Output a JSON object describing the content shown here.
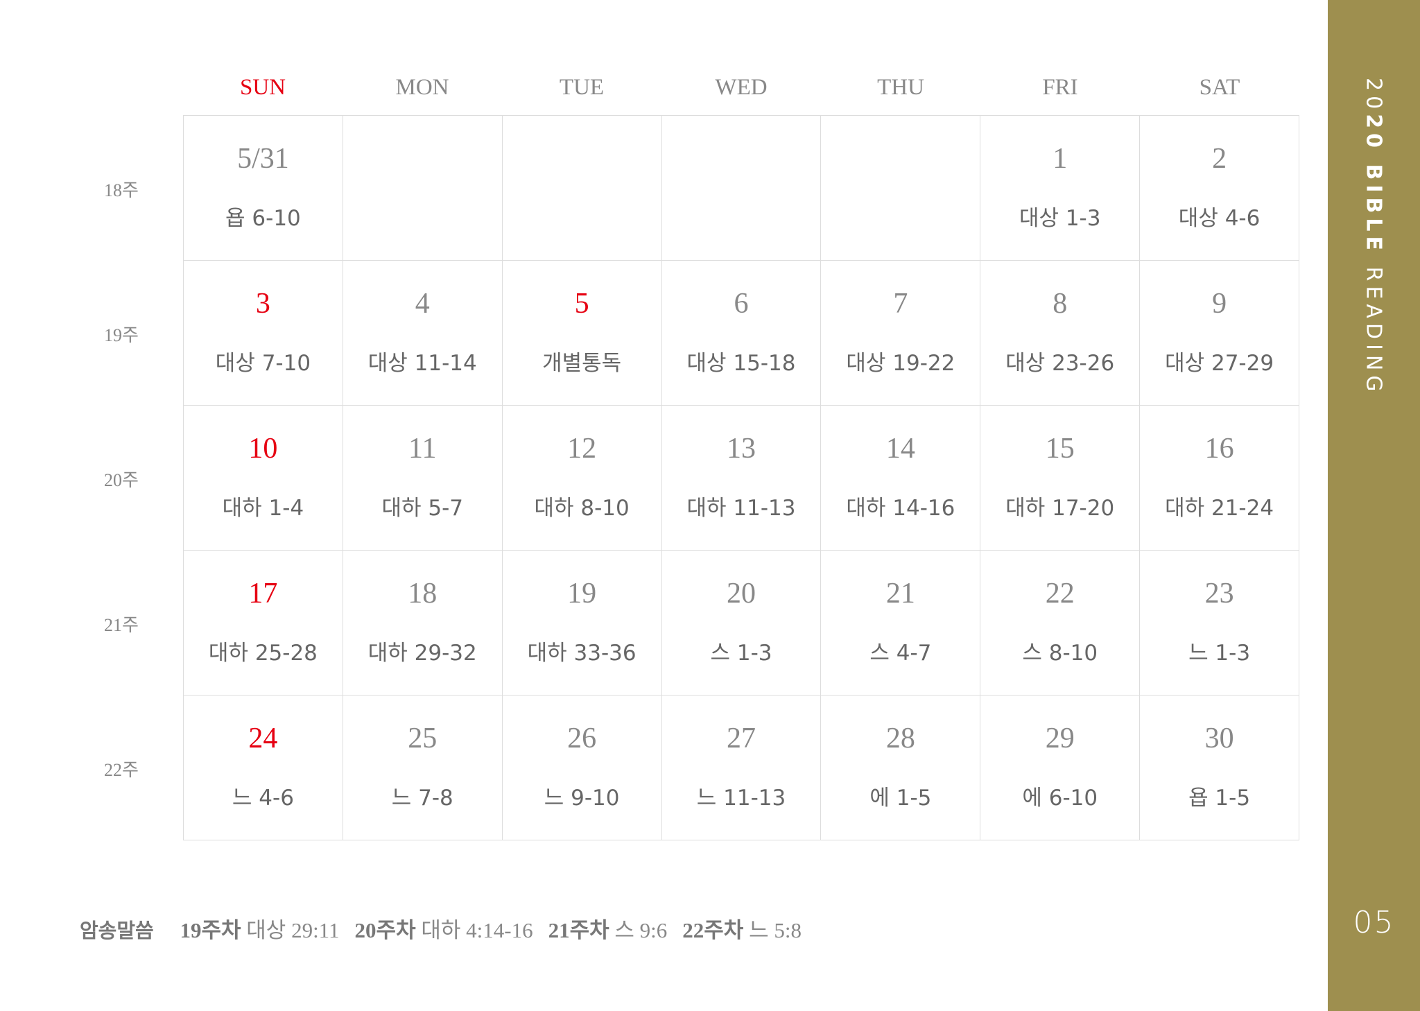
{
  "weekdays": [
    "SUN",
    "MON",
    "TUE",
    "WED",
    "THU",
    "FRI",
    "SAT"
  ],
  "weeks": [
    "18주",
    "19주",
    "20주",
    "21주",
    "22주"
  ],
  "rows": [
    [
      {
        "date": "5/31",
        "reading": "욥 6-10"
      },
      {
        "date": "",
        "reading": ""
      },
      {
        "date": "",
        "reading": ""
      },
      {
        "date": "",
        "reading": ""
      },
      {
        "date": "",
        "reading": ""
      },
      {
        "date": "1",
        "reading": "대상 1-3"
      },
      {
        "date": "2",
        "reading": "대상 4-6"
      }
    ],
    [
      {
        "date": "3",
        "reading": "대상 7-10",
        "red": true
      },
      {
        "date": "4",
        "reading": "대상 11-14"
      },
      {
        "date": "5",
        "reading": "개별통독",
        "red": true
      },
      {
        "date": "6",
        "reading": "대상 15-18"
      },
      {
        "date": "7",
        "reading": "대상 19-22"
      },
      {
        "date": "8",
        "reading": "대상 23-26"
      },
      {
        "date": "9",
        "reading": "대상 27-29"
      }
    ],
    [
      {
        "date": "10",
        "reading": "대하 1-4",
        "red": true
      },
      {
        "date": "11",
        "reading": "대하 5-7"
      },
      {
        "date": "12",
        "reading": "대하 8-10"
      },
      {
        "date": "13",
        "reading": "대하 11-13"
      },
      {
        "date": "14",
        "reading": "대하 14-16"
      },
      {
        "date": "15",
        "reading": "대하 17-20"
      },
      {
        "date": "16",
        "reading": "대하 21-24"
      }
    ],
    [
      {
        "date": "17",
        "reading": "대하 25-28",
        "red": true
      },
      {
        "date": "18",
        "reading": "대하 29-32"
      },
      {
        "date": "19",
        "reading": "대하 33-36"
      },
      {
        "date": "20",
        "reading": "스 1-3"
      },
      {
        "date": "21",
        "reading": "스 4-7"
      },
      {
        "date": "22",
        "reading": "스 8-10"
      },
      {
        "date": "23",
        "reading": "느 1-3"
      }
    ],
    [
      {
        "date": "24",
        "reading": "느 4-6",
        "red": true
      },
      {
        "date": "25",
        "reading": "느 7-8"
      },
      {
        "date": "26",
        "reading": "느 9-10"
      },
      {
        "date": "27",
        "reading": "느 11-13"
      },
      {
        "date": "28",
        "reading": "에 1-5"
      },
      {
        "date": "29",
        "reading": "에 6-10"
      },
      {
        "date": "30",
        "reading": "욥 1-5"
      }
    ]
  ],
  "memory_verses": {
    "title": "암송말씀",
    "items": [
      {
        "week": "19주차",
        "ref": "대상 29:11"
      },
      {
        "week": "20주차",
        "ref": "대하 4:14-16"
      },
      {
        "week": "21주차",
        "ref": "스 9:6"
      },
      {
        "week": "22주차",
        "ref": "느 5:8"
      }
    ]
  },
  "sidebar": {
    "year_light": "20",
    "year_bold": "20",
    "bold": "BIBLE",
    "light": "READING",
    "page": "05"
  },
  "colors": {
    "accent": "#9e8f4f",
    "holiday": "#e60012"
  }
}
